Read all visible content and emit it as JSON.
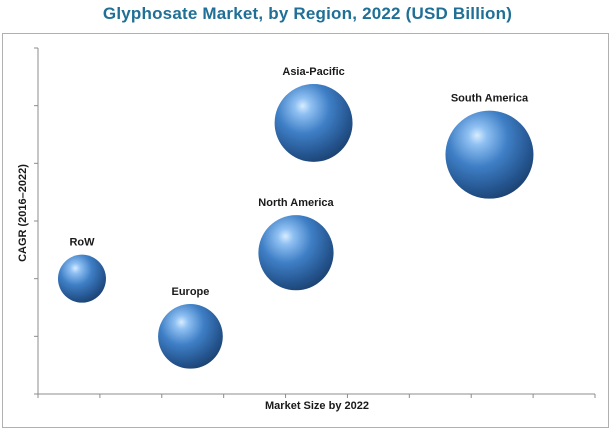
{
  "page": {
    "title_color": "#1f6f96"
  },
  "chart_data": {
    "type": "bubble",
    "title": "Glyphosate Market, by Region, 2022 (USD Billion)",
    "xlabel": "Market Size by 2022",
    "ylabel": "CAGR (2016–2022)",
    "xlim": [
      0,
      9.5
    ],
    "ylim": [
      0,
      6
    ],
    "grid": false,
    "legend": "none",
    "bubble_color": "#3a78c2",
    "series": [
      {
        "name": "RoW",
        "x": 0.75,
        "y": 2.0,
        "size": 0.55
      },
      {
        "name": "Europe",
        "x": 2.6,
        "y": 1.0,
        "size": 1.0
      },
      {
        "name": "North America",
        "x": 4.4,
        "y": 2.45,
        "size": 1.35
      },
      {
        "name": "Asia-Pacific",
        "x": 4.7,
        "y": 4.7,
        "size": 1.45
      },
      {
        "name": "South America",
        "x": 7.7,
        "y": 4.15,
        "size": 1.85
      }
    ]
  }
}
